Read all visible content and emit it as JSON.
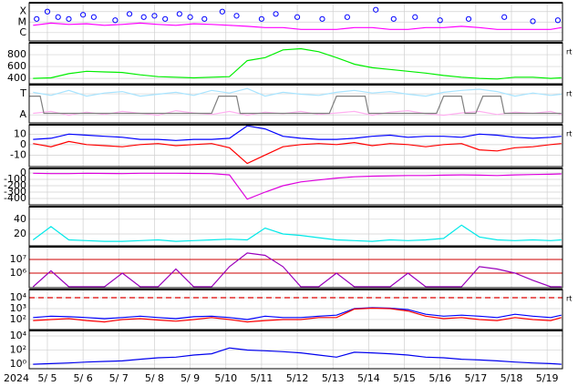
{
  "chart_data": [
    {
      "type": "line",
      "log": true,
      "ylim": [
        1.6e-07,
        0.0007
      ],
      "yticks": [
        {
          "value": 0.0001,
          "label": "X"
        },
        {
          "value": 1e-05,
          "label": "M"
        },
        {
          "value": 1e-06,
          "label": "C"
        }
      ],
      "x": [
        4.6,
        5.1,
        5.6,
        6.1,
        6.6,
        7.1,
        7.6,
        8.1,
        8.6,
        9.1,
        9.6,
        10.1,
        10.6,
        11.1,
        11.6,
        12.1,
        12.6,
        13.1,
        13.6,
        14.1,
        14.6,
        15.1,
        15.6,
        16.1,
        16.6,
        17.1,
        17.6,
        18.1,
        18.6,
        19.1,
        19.4
      ],
      "series": [
        {
          "color": "#ff00ff",
          "values": [
            5e-06,
            8e-06,
            6e-06,
            7e-06,
            5e-06,
            6e-06,
            8e-06,
            6e-06,
            5e-06,
            7e-06,
            6e-06,
            5e-06,
            4e-06,
            3e-06,
            3e-06,
            2e-06,
            2e-06,
            2e-06,
            3e-06,
            3e-06,
            2e-06,
            2e-06,
            3e-06,
            3e-06,
            4e-06,
            3e-06,
            2e-06,
            2e-06,
            2e-06,
            2e-06,
            3e-06
          ]
        },
        {
          "color": "#0000ff",
          "marker": "circle",
          "x": [
            4.7,
            5.0,
            5.3,
            5.6,
            6.0,
            6.3,
            6.9,
            7.3,
            7.7,
            8.0,
            8.3,
            8.7,
            9.0,
            9.4,
            9.9,
            10.3,
            11.0,
            11.4,
            12.0,
            12.7,
            13.4,
            14.2,
            14.7,
            15.3,
            16.0,
            16.8,
            17.8,
            18.6,
            19.3
          ],
          "values": [
            2e-05,
            0.0001,
            3e-05,
            2e-05,
            5e-05,
            3e-05,
            1.5e-05,
            6e-05,
            3e-05,
            4e-05,
            2e-05,
            6e-05,
            3e-05,
            2e-05,
            0.0001,
            4e-05,
            2e-05,
            6e-05,
            3e-05,
            2e-05,
            3e-05,
            0.00015,
            2e-05,
            3e-05,
            1.5e-05,
            2e-05,
            3e-05,
            1.2e-05,
            1.5e-05
          ]
        }
      ]
    },
    {
      "type": "line",
      "ylim": [
        310,
        1000
      ],
      "yticks": [
        400,
        600,
        800
      ],
      "annotation": "rt",
      "x": [
        4.6,
        5.1,
        5.6,
        6.1,
        6.6,
        7.1,
        7.6,
        8.1,
        8.6,
        9.1,
        9.6,
        10.1,
        10.6,
        11.1,
        11.6,
        12.1,
        12.6,
        13.1,
        13.6,
        14.1,
        14.6,
        15.1,
        15.6,
        16.1,
        16.6,
        17.1,
        17.6,
        18.1,
        18.6,
        19.1,
        19.4
      ],
      "series": [
        {
          "color": "#00ee00",
          "values": [
            400,
            410,
            480,
            520,
            510,
            500,
            460,
            430,
            420,
            410,
            420,
            430,
            700,
            750,
            880,
            900,
            850,
            750,
            640,
            580,
            550,
            520,
            490,
            450,
            420,
            400,
            390,
            420,
            420,
            400,
            410
          ]
        }
      ]
    },
    {
      "type": "line",
      "ylim": [
        0,
        1
      ],
      "yticks": [
        {
          "value": 0.76,
          "label": "T"
        },
        {
          "value": 0.21,
          "label": "A"
        }
      ],
      "annotation": "rt",
      "x": [
        4.6,
        5.1,
        5.6,
        6.1,
        6.6,
        7.1,
        7.6,
        8.1,
        8.6,
        9.1,
        9.6,
        10.1,
        10.6,
        11.1,
        11.6,
        12.1,
        12.6,
        13.1,
        13.6,
        14.1,
        14.6,
        15.1,
        15.6,
        16.1,
        16.6,
        17.1,
        17.6,
        18.1,
        18.6,
        19.1,
        19.4
      ],
      "series": [
        {
          "color": "#a8e4ff",
          "values": [
            0.8,
            0.72,
            0.85,
            0.7,
            0.78,
            0.82,
            0.7,
            0.75,
            0.8,
            0.72,
            0.85,
            0.78,
            0.9,
            0.7,
            0.8,
            0.75,
            0.72,
            0.8,
            0.85,
            0.78,
            0.82,
            0.75,
            0.7,
            0.8,
            0.85,
            0.88,
            0.82,
            0.7,
            0.78,
            0.72,
            0.75
          ]
        },
        {
          "color": "#ffb0f0",
          "values": [
            0.25,
            0.3,
            0.2,
            0.28,
            0.22,
            0.3,
            0.25,
            0.2,
            0.32,
            0.26,
            0.22,
            0.3,
            0.2,
            0.28,
            0.24,
            0.3,
            0.22,
            0.26,
            0.3,
            0.2,
            0.28,
            0.32,
            0.24,
            0.2,
            0.26,
            0.3,
            0.22,
            0.28,
            0.25,
            0.3,
            0.22
          ]
        },
        {
          "color": "#808080",
          "x": [
            4.5,
            4.8,
            4.9,
            9.6,
            9.8,
            10.3,
            10.4,
            12.9,
            13.1,
            13.9,
            14.0,
            15.9,
            16.1,
            16.6,
            16.7,
            17.0,
            17.2,
            17.7,
            17.8,
            19.4
          ],
          "values": [
            0.7,
            0.7,
            0.25,
            0.25,
            0.7,
            0.7,
            0.25,
            0.25,
            0.7,
            0.7,
            0.25,
            0.25,
            0.7,
            0.7,
            0.25,
            0.25,
            0.7,
            0.7,
            0.25,
            0.25
          ]
        }
      ]
    },
    {
      "type": "line",
      "ylim": [
        -21,
        19
      ],
      "yticks": [
        -10,
        0,
        10
      ],
      "annotation": "rt",
      "x": [
        4.6,
        5.1,
        5.6,
        6.1,
        6.6,
        7.1,
        7.6,
        8.1,
        8.6,
        9.1,
        9.6,
        10.1,
        10.6,
        11.1,
        11.6,
        12.1,
        12.6,
        13.1,
        13.6,
        14.1,
        14.6,
        15.1,
        15.6,
        16.1,
        16.6,
        17.1,
        17.6,
        18.1,
        18.6,
        19.1,
        19.4
      ],
      "series": [
        {
          "color": "#0000ff",
          "values": [
            5,
            6,
            10,
            9,
            8,
            7,
            5,
            5,
            4,
            5,
            5,
            6,
            18,
            15,
            8,
            6,
            5,
            5,
            6,
            8,
            9,
            7,
            8,
            8,
            7,
            10,
            9,
            7,
            6,
            7,
            8
          ]
        },
        {
          "color": "#ff0000",
          "values": [
            1,
            -2,
            3,
            0,
            -1,
            -2,
            0,
            1,
            -1,
            0,
            1,
            -3,
            -18,
            -10,
            -2,
            0,
            1,
            0,
            2,
            -1,
            1,
            0,
            -2,
            0,
            1,
            -5,
            -6,
            -3,
            -2,
            0,
            1
          ]
        }
      ]
    },
    {
      "type": "line",
      "ylim": [
        -500,
        71
      ],
      "yticks": [
        -400,
        -300,
        -200,
        -100,
        0
      ],
      "x": [
        4.6,
        5.1,
        5.6,
        6.1,
        6.6,
        7.1,
        7.6,
        8.1,
        8.6,
        9.1,
        9.6,
        10.1,
        10.6,
        11.1,
        11.6,
        12.1,
        12.6,
        13.1,
        13.6,
        14.1,
        14.6,
        15.1,
        15.6,
        16.1,
        16.6,
        17.1,
        17.6,
        18.1,
        18.6,
        19.1,
        19.4
      ],
      "series": [
        {
          "color": "#dd00dd",
          "values": [
            -5,
            -10,
            -10,
            -5,
            -8,
            -10,
            -5,
            -5,
            -5,
            -8,
            -10,
            -30,
            -412,
            -300,
            -200,
            -140,
            -110,
            -80,
            -60,
            -50,
            -45,
            -40,
            -40,
            -35,
            -30,
            -35,
            -40,
            -30,
            -25,
            -20,
            -15
          ]
        }
      ]
    },
    {
      "type": "line",
      "ylim": [
        4,
        57
      ],
      "yticks": [
        20,
        40
      ],
      "x": [
        4.6,
        5.1,
        5.6,
        6.1,
        6.6,
        7.1,
        7.6,
        8.1,
        8.6,
        9.1,
        9.6,
        10.1,
        10.6,
        11.1,
        11.6,
        12.1,
        12.6,
        13.1,
        13.6,
        14.1,
        14.6,
        15.1,
        15.6,
        16.1,
        16.6,
        17.1,
        17.6,
        18.1,
        18.6,
        19.1,
        19.4
      ],
      "series": [
        {
          "color": "#00e8e8",
          "values": [
            12,
            30,
            12,
            11,
            10,
            10,
            11,
            12,
            10,
            11,
            12,
            13,
            12,
            28,
            20,
            18,
            15,
            12,
            11,
            10,
            12,
            11,
            12,
            14,
            32,
            16,
            12,
            11,
            12,
            11,
            12
          ]
        }
      ]
    },
    {
      "type": "line",
      "log": true,
      "ylim": [
        86000.0,
        86000000.0
      ],
      "grid_color": "#cc0000",
      "yticks": [
        {
          "value": 1000000.0,
          "label": "10⁶"
        },
        {
          "value": 10000000.0,
          "label": "10⁷"
        }
      ],
      "x": [
        4.6,
        5.1,
        5.6,
        6.1,
        6.6,
        7.1,
        7.6,
        8.1,
        8.6,
        9.1,
        9.6,
        10.1,
        10.6,
        11.1,
        11.6,
        12.1,
        12.6,
        13.1,
        13.6,
        14.1,
        14.6,
        15.1,
        15.6,
        16.1,
        16.6,
        17.1,
        17.6,
        18.1,
        18.6,
        19.1,
        19.4
      ],
      "series": [
        {
          "color": "#9900bb",
          "values": [
            100000.0,
            1500000.0,
            100000.0,
            100000.0,
            100000.0,
            1000000.0,
            100000.0,
            100000.0,
            2000000.0,
            100000.0,
            100000.0,
            3000000.0,
            30000000.0,
            20000000.0,
            3000000.0,
            100000.0,
            100000.0,
            1000000.0,
            100000.0,
            100000.0,
            100000.0,
            1000000.0,
            100000.0,
            100000.0,
            100000.0,
            3000000.0,
            2000000.0,
            1000000.0,
            300000.0,
            100000.0,
            100000.0
          ]
        }
      ]
    },
    {
      "type": "line",
      "log": true,
      "ylim": [
        12,
        56000.0
      ],
      "threshold": 10000,
      "annotation": "rt",
      "yticks": [
        {
          "value": 100,
          "label": "10²"
        },
        {
          "value": 1000,
          "label": "10³"
        },
        {
          "value": 10000,
          "label": "10⁴"
        }
      ],
      "x": [
        4.6,
        5.1,
        5.6,
        6.1,
        6.6,
        7.1,
        7.6,
        8.1,
        8.6,
        9.1,
        9.6,
        10.1,
        10.6,
        11.1,
        11.6,
        12.1,
        12.6,
        13.1,
        13.6,
        14.1,
        14.6,
        15.1,
        15.6,
        16.1,
        16.6,
        17.1,
        17.6,
        18.1,
        18.6,
        19.1,
        19.4
      ],
      "series": [
        {
          "color": "#0000ff",
          "values": [
            150,
            200,
            180,
            150,
            120,
            150,
            200,
            150,
            120,
            180,
            200,
            150,
            100,
            200,
            150,
            150,
            200,
            250,
            1000,
            1200,
            1100,
            800,
            300,
            200,
            250,
            200,
            150,
            300,
            200,
            150,
            250
          ]
        },
        {
          "color": "#ff0000",
          "values": [
            80,
            100,
            120,
            80,
            60,
            100,
            120,
            90,
            70,
            100,
            150,
            100,
            60,
            80,
            100,
            100,
            150,
            150,
            900,
            1100,
            1000,
            600,
            200,
            120,
            150,
            100,
            80,
            150,
            100,
            80,
            150
          ]
        }
      ]
    },
    {
      "type": "line",
      "log": true,
      "ylim": [
        0.23,
        60000.0
      ],
      "yticks": [
        {
          "value": 1,
          "label": "10⁰"
        },
        {
          "value": 100,
          "label": "10²"
        },
        {
          "value": 10000,
          "label": "10⁴"
        }
      ],
      "xlabel": "2024",
      "xlim": [
        4.49,
        19.43
      ],
      "xticks": [
        {
          "value": 5,
          "label": "5/ 5"
        },
        {
          "value": 6,
          "label": "5/ 6"
        },
        {
          "value": 7,
          "label": "5/ 7"
        },
        {
          "value": 8,
          "label": "5/ 8"
        },
        {
          "value": 9,
          "label": "5/ 9"
        },
        {
          "value": 10,
          "label": "5/10"
        },
        {
          "value": 11,
          "label": "5/11"
        },
        {
          "value": 12,
          "label": "5/12"
        },
        {
          "value": 13,
          "label": "5/13"
        },
        {
          "value": 14,
          "label": "5/14"
        },
        {
          "value": 15,
          "label": "5/15"
        },
        {
          "value": 16,
          "label": "5/16"
        },
        {
          "value": 17,
          "label": "5/17"
        },
        {
          "value": 18,
          "label": "5/18"
        },
        {
          "value": 19,
          "label": "5/19"
        }
      ],
      "x": [
        4.6,
        5.1,
        5.6,
        6.1,
        6.6,
        7.1,
        7.6,
        8.1,
        8.6,
        9.1,
        9.6,
        10.1,
        10.6,
        11.1,
        11.6,
        12.1,
        12.6,
        13.1,
        13.6,
        14.1,
        14.6,
        15.1,
        15.6,
        16.1,
        16.6,
        17.1,
        17.6,
        18.1,
        18.6,
        19.1,
        19.4
      ],
      "series": [
        {
          "color": "#0000ee",
          "values": [
            1,
            1.2,
            1.5,
            2,
            2.5,
            3,
            5,
            8,
            10,
            20,
            30,
            200,
            100,
            80,
            60,
            40,
            20,
            10,
            50,
            40,
            30,
            20,
            10,
            8,
            5,
            4,
            3,
            2,
            1.5,
            1.2,
            1
          ]
        }
      ]
    }
  ]
}
